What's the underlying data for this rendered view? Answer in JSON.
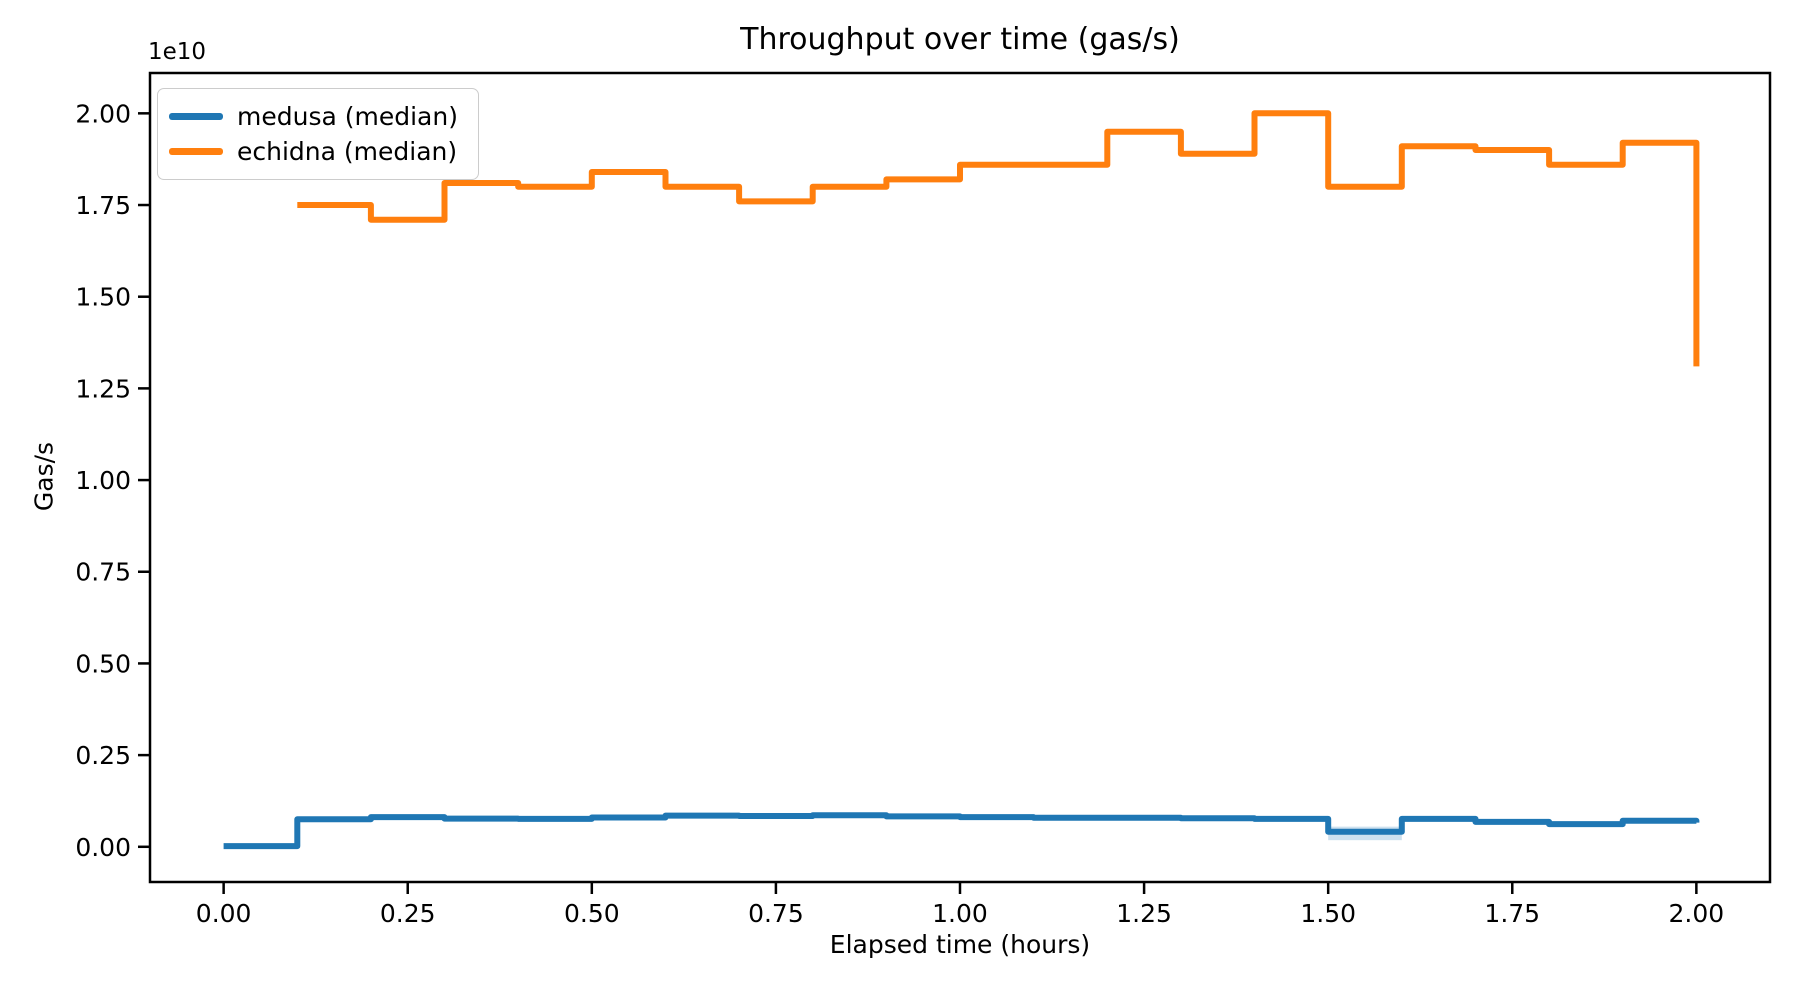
{
  "chart_data": {
    "type": "line",
    "subtype": "step-post",
    "title": "Throughput over time (gas/s)",
    "xlabel": "Elapsed time (hours)",
    "ylabel": "Gas/s",
    "y_offset_text": "1e10",
    "y_scale_note": "y values are in units of 1e10 Gas/s",
    "grid": false,
    "legend_position": "upper left",
    "xlim": [
      -0.1,
      2.1
    ],
    "ylim": [
      -0.096,
      2.11
    ],
    "x_tick_labels": [
      "0.00",
      "0.25",
      "0.50",
      "0.75",
      "1.00",
      "1.25",
      "1.50",
      "1.75",
      "2.00"
    ],
    "y_tick_labels": [
      "0.00",
      "0.25",
      "0.50",
      "0.75",
      "1.00",
      "1.25",
      "1.50",
      "1.75",
      "2.00"
    ],
    "series": [
      {
        "name": "medusa (median)",
        "color": "#1f77b4",
        "points": [
          [
            0.0,
            0.002
          ],
          [
            0.1,
            0.075
          ],
          [
            0.2,
            0.081
          ],
          [
            0.3,
            0.077
          ],
          [
            0.4,
            0.076
          ],
          [
            0.5,
            0.08
          ],
          [
            0.6,
            0.085
          ],
          [
            0.7,
            0.084
          ],
          [
            0.8,
            0.086
          ],
          [
            0.9,
            0.083
          ],
          [
            1.0,
            0.081
          ],
          [
            1.1,
            0.079
          ],
          [
            1.2,
            0.079
          ],
          [
            1.3,
            0.078
          ],
          [
            1.4,
            0.076
          ],
          [
            1.5,
            0.041
          ],
          [
            1.6,
            0.076
          ],
          [
            1.7,
            0.068
          ],
          [
            1.8,
            0.062
          ],
          [
            1.9,
            0.071
          ],
          [
            2.0,
            0.066
          ]
        ],
        "band": {
          "x0": 1.5,
          "x1": 1.6,
          "low": 0.018,
          "high": 0.055,
          "color": "rgba(31,119,180,0.22)"
        }
      },
      {
        "name": "echidna (median)",
        "color": "#ff7f0e",
        "points": [
          [
            0.1,
            1.75
          ],
          [
            0.2,
            1.71
          ],
          [
            0.3,
            1.81
          ],
          [
            0.4,
            1.8
          ],
          [
            0.5,
            1.84
          ],
          [
            0.6,
            1.8
          ],
          [
            0.7,
            1.76
          ],
          [
            0.8,
            1.8
          ],
          [
            0.9,
            1.82
          ],
          [
            1.0,
            1.86
          ],
          [
            1.1,
            1.86
          ],
          [
            1.2,
            1.95
          ],
          [
            1.3,
            1.89
          ],
          [
            1.4,
            2.0
          ],
          [
            1.5,
            1.8
          ],
          [
            1.6,
            1.91
          ],
          [
            1.7,
            1.9
          ],
          [
            1.8,
            1.86
          ],
          [
            1.9,
            1.92
          ],
          [
            2.0,
            1.31
          ]
        ]
      }
    ]
  }
}
